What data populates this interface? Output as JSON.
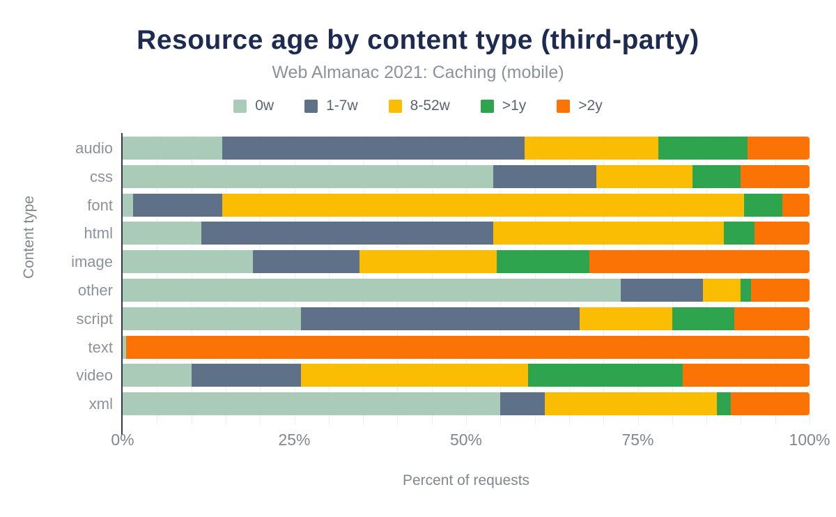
{
  "chart_data": {
    "type": "bar",
    "orientation": "horizontal-stacked",
    "title": "Resource age by content type (third-party)",
    "subtitle": "Web Almanac 2021: Caching (mobile)",
    "xlabel": "Percent of requests",
    "ylabel": "Content type",
    "xlim": [
      0,
      100
    ],
    "x_tick_values": [
      0,
      25,
      50,
      75,
      100
    ],
    "x_tick_labels": [
      "0%",
      "25%",
      "50%",
      "75%",
      "100%"
    ],
    "grid": {
      "show": true,
      "step_percent": 5,
      "color": "#edeff2"
    },
    "legend_position": "top",
    "categories": [
      "audio",
      "css",
      "font",
      "html",
      "image",
      "other",
      "script",
      "text",
      "video",
      "xml"
    ],
    "series": [
      {
        "name": "0w",
        "color": "#a9cbb8",
        "values": [
          14.5,
          54,
          1.5,
          11.5,
          19,
          72.5,
          26,
          0.5,
          10,
          55
        ]
      },
      {
        "name": "1-7w",
        "color": "#5e7188",
        "values": [
          44,
          15,
          13,
          42.5,
          15.5,
          12,
          40.5,
          0,
          16,
          6.5
        ]
      },
      {
        "name": "8-52w",
        "color": "#fbbc04",
        "values": [
          19.5,
          14,
          76,
          33.5,
          20,
          5.5,
          13.5,
          0,
          33,
          25
        ]
      },
      {
        "name": ">1y",
        "color": "#2fa44e",
        "values": [
          13,
          7,
          5.5,
          4.5,
          13.5,
          1.5,
          9,
          0,
          22.5,
          2
        ]
      },
      {
        "name": ">2y",
        "color": "#fb7304",
        "values": [
          9,
          10,
          4,
          8,
          32,
          8.5,
          11,
          99.5,
          18.5,
          11.5
        ]
      }
    ]
  }
}
